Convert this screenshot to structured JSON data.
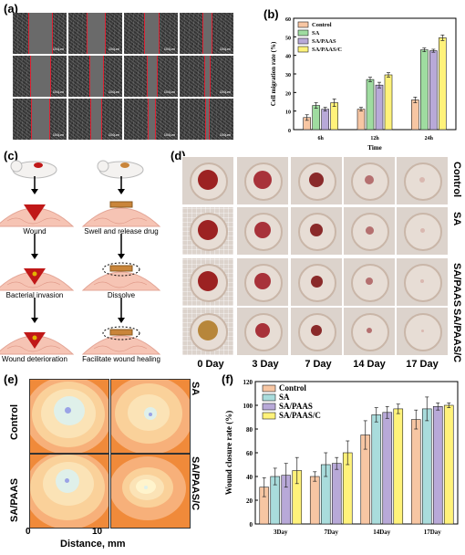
{
  "panels": {
    "a": {
      "label": "(a)",
      "scale_bar": "100µm"
    },
    "b": {
      "label": "(b)"
    },
    "c": {
      "label": "(c)",
      "left_captions": [
        "Wound",
        "Bacterial invasion",
        "Wound deterioration"
      ],
      "right_captions": [
        "Swell and release drug",
        "Dissolve",
        "Facilitate wound healing"
      ]
    },
    "d": {
      "label": "(d)",
      "days": [
        "0 Day",
        "3 Day",
        "7 Day",
        "14 Day",
        "17 Day"
      ],
      "rows": [
        "Control",
        "SA",
        "SA/PAAS",
        "SA/PAAS/C"
      ]
    },
    "e": {
      "label": "(e)",
      "titles": [
        "Control",
        "SA",
        "SA/PAAS",
        "SA/PAAS/C"
      ],
      "tick0": "0",
      "tick10": "10",
      "xlabel": "Distance, mm"
    },
    "f": {
      "label": "(f)"
    }
  },
  "colors": {
    "control": "#f7c6a3",
    "sa": "#a9dcc8",
    "sapaas": "#b8a9d8",
    "sapaasc": "#fff27a",
    "orange": "#f08a3a"
  },
  "chart_data": [
    {
      "type": "bar",
      "panel": "b",
      "categories": [
        "6h",
        "12h",
        "24h"
      ],
      "series": [
        {
          "name": "Control",
          "values": [
            6.5,
            11,
            16
          ],
          "errors": [
            1.5,
            1.0,
            1.5
          ],
          "color": "#f7c6a3"
        },
        {
          "name": "SA",
          "values": [
            13,
            27,
            43
          ],
          "errors": [
            1.5,
            1.2,
            1.0
          ],
          "color": "#9fdca0"
        },
        {
          "name": "SA/PAAS",
          "values": [
            11,
            24,
            42.5
          ],
          "errors": [
            1.0,
            1.5,
            0.8
          ],
          "color": "#b8a9d8"
        },
        {
          "name": "SA/PAAS/C",
          "values": [
            14.5,
            29.5,
            49.5
          ],
          "errors": [
            2.0,
            1.2,
            1.5
          ],
          "color": "#fff27a"
        }
      ],
      "xlabel": "Time",
      "ylabel": "Cell migration rate (%)",
      "ylim": [
        0,
        60
      ],
      "yticks": [
        0,
        10,
        20,
        30,
        40,
        50,
        60
      ],
      "legend": "top-left"
    },
    {
      "type": "bar",
      "panel": "f",
      "categories": [
        "3Day",
        "7Day",
        "14Day",
        "17Day"
      ],
      "series": [
        {
          "name": "Control",
          "values": [
            31,
            40,
            75,
            88
          ],
          "errors": [
            8,
            4,
            12,
            8
          ],
          "color": "#f7c6a3"
        },
        {
          "name": "SA",
          "values": [
            40,
            50,
            92,
            97
          ],
          "errors": [
            7,
            10,
            6,
            10
          ],
          "color": "#a9dcdc"
        },
        {
          "name": "SA/PAAS",
          "values": [
            41,
            51,
            94,
            99
          ],
          "errors": [
            10,
            5,
            5,
            3
          ],
          "color": "#b8a9d8"
        },
        {
          "name": "SA/PAAS/C",
          "values": [
            45,
            60,
            97,
            100
          ],
          "errors": [
            11,
            10,
            4,
            2
          ],
          "color": "#fff27a"
        }
      ],
      "ylabel": "Wound closure rate (%)",
      "ylim": [
        0,
        120
      ],
      "yticks": [
        0,
        20,
        40,
        60,
        80,
        100,
        120
      ],
      "legend": "top-left"
    }
  ]
}
